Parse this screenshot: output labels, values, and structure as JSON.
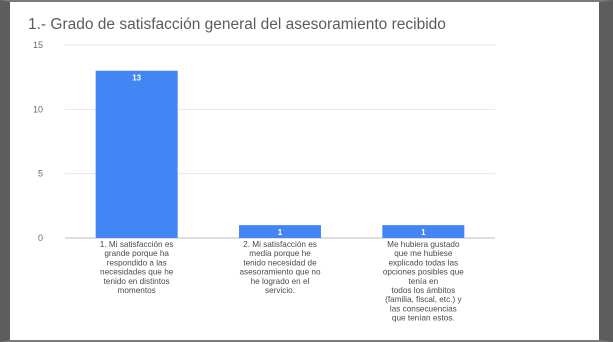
{
  "chart_data": {
    "type": "bar",
    "title": "1.- Grado de satisfacción general del asesoramiento recibido",
    "xlabel": "",
    "ylabel": "",
    "ylim": [
      0,
      15
    ],
    "yticks": [
      0,
      5,
      10,
      15
    ],
    "grid": true,
    "legend": "none",
    "bar_color": "#4285f4",
    "categories": [
      "1. Mi satisfacción es grande porque ha respondido a las necesidades que he tenido en distintos momentos",
      "2. Mi satisfacción es media porque he tenido necesidad de asesoramiento que no he logrado en el servicio.",
      "Me hubiera gustado que me hubiese explicado todas las opciones posibles que tenía en todos los ámbitos (familia, fiscal, etc.) y las consecuencias que tenían estos."
    ],
    "category_lines": [
      [
        "1. Mi satisfacción es",
        "grande porque ha",
        "respondido a las",
        "necesidades que he",
        "tenido en distintos",
        "momentos"
      ],
      [
        "2. Mi satisfacción es",
        "media porque he",
        "tenido necesidad de",
        "asesoramiento que no",
        "he logrado en el",
        "servicio."
      ],
      [
        "Me hubiera gustado",
        "que me hubiese",
        "explicado todas las",
        "opciones posibles que",
        "tenía en",
        "todos los ámbitos",
        "(familia, fiscal, etc.) y",
        "las consecuencias",
        "que tenían estos."
      ]
    ],
    "values": [
      13,
      1,
      1
    ],
    "data_labels": [
      "13",
      "1",
      "1"
    ]
  }
}
